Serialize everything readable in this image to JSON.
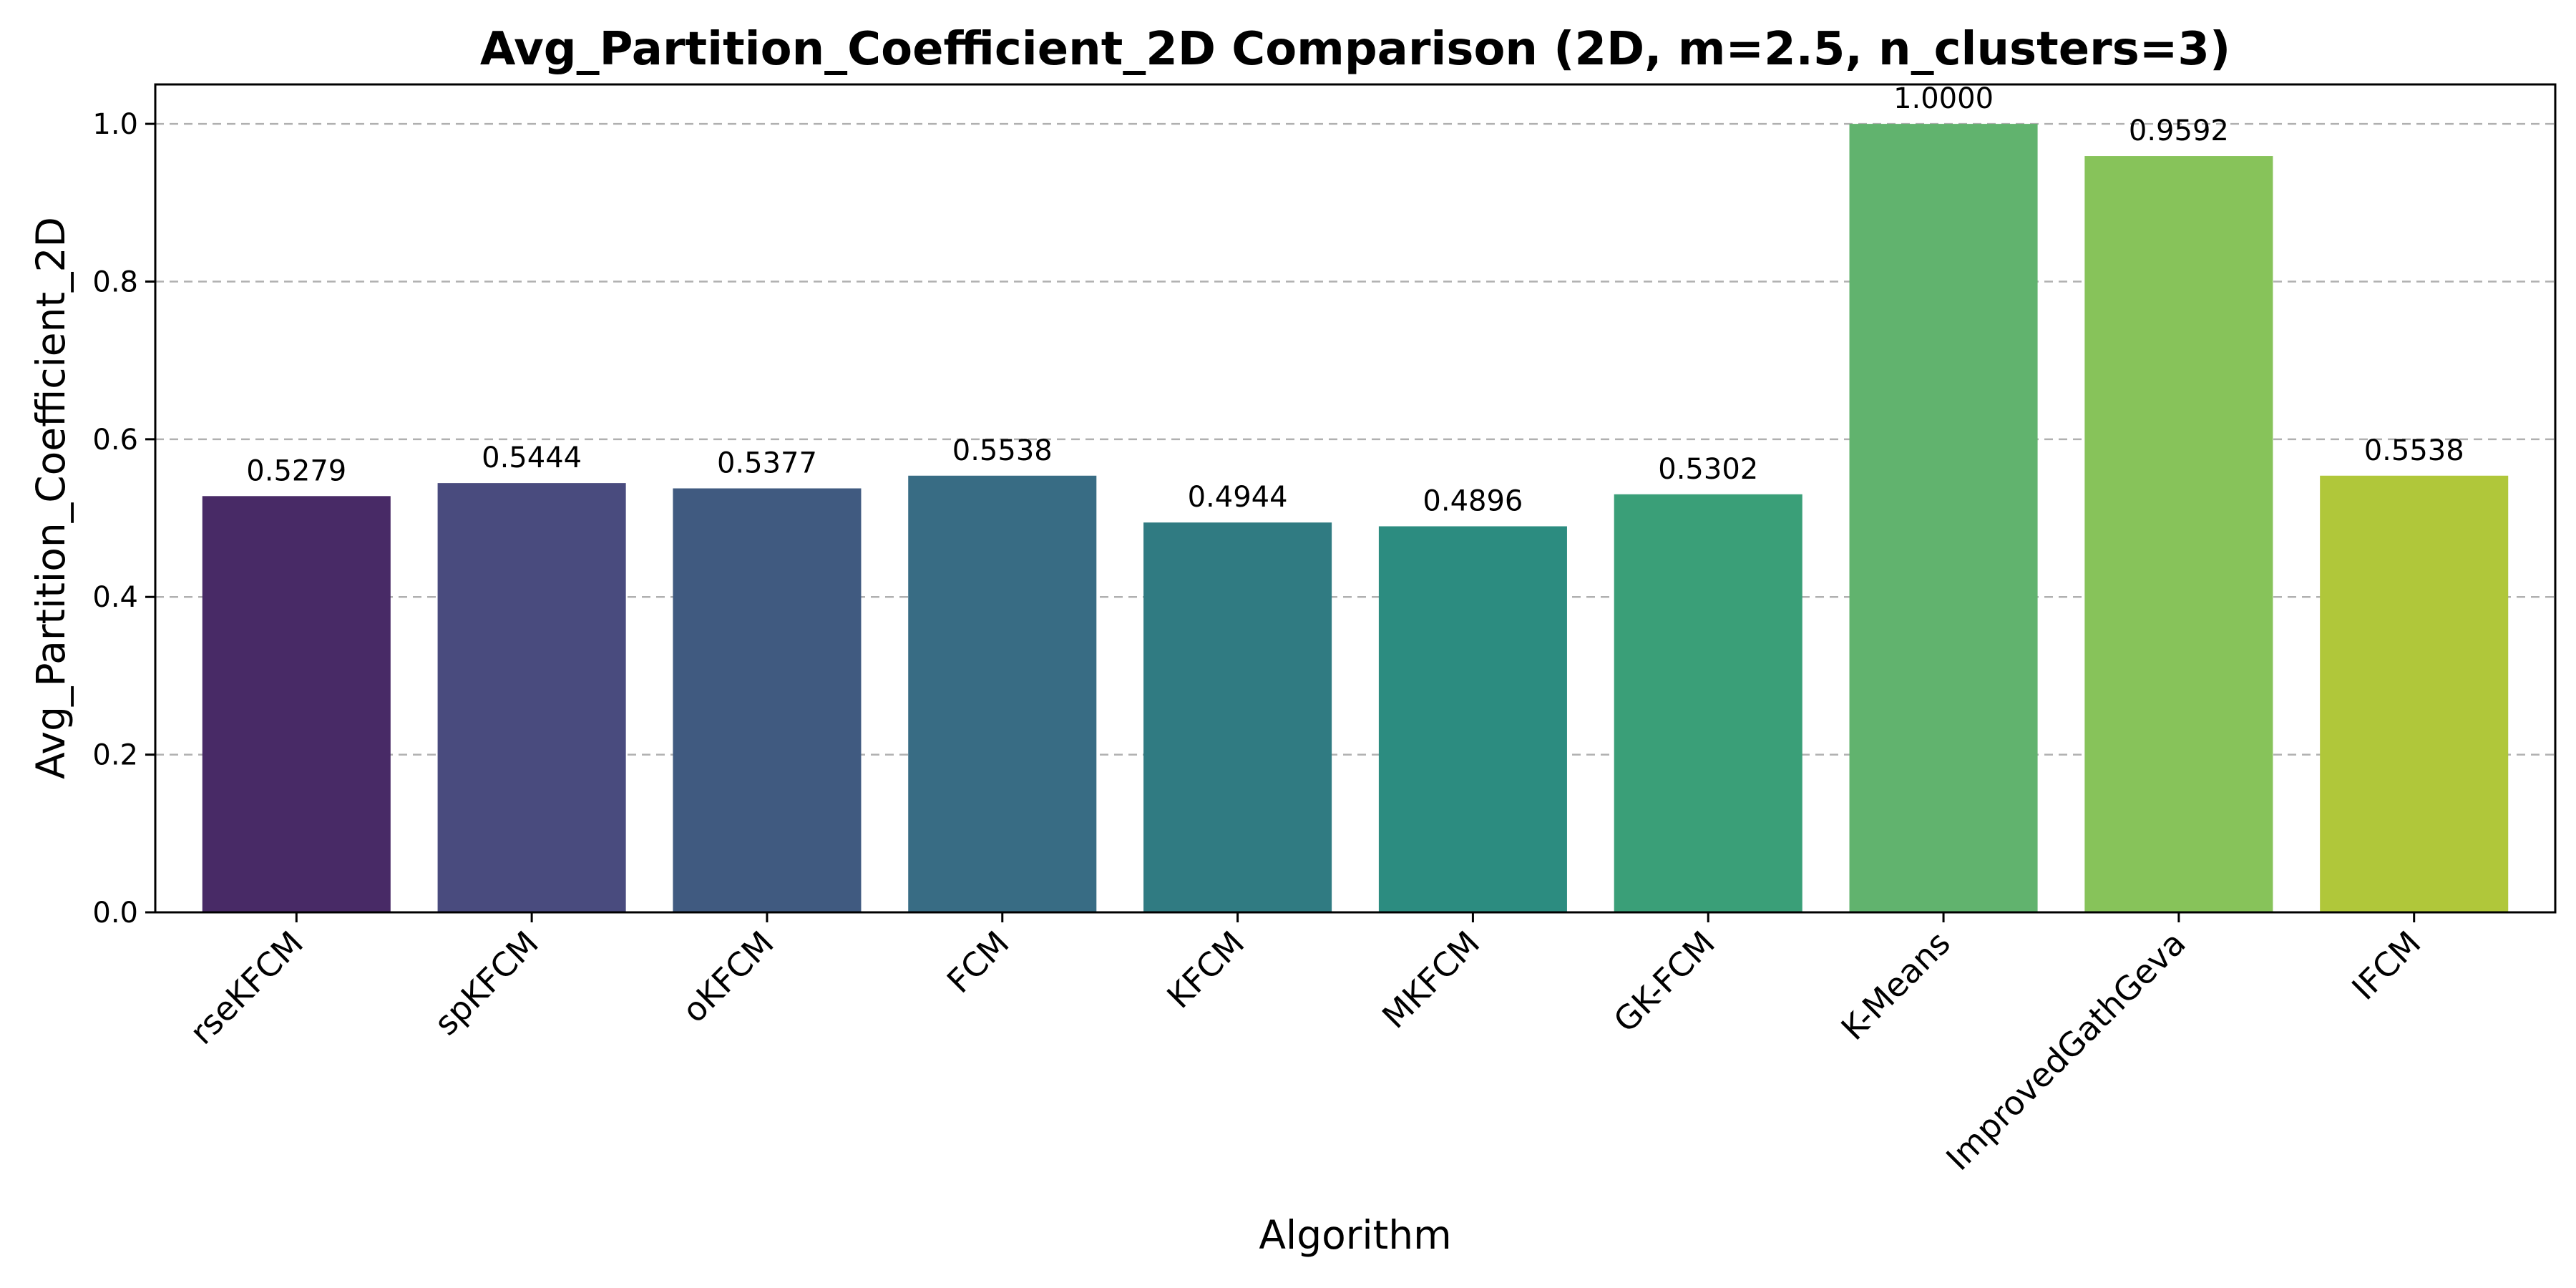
{
  "chart_data": {
    "type": "bar",
    "title": "Avg_Partition_Coefficient_2D Comparison (2D, m=2.5, n_clusters=3)",
    "xlabel": "Algorithm",
    "ylabel": "Avg_Partition_Coefficient_2D",
    "categories": [
      "rseKFCM",
      "spKFCM",
      "oKFCM",
      "FCM",
      "KFCM",
      "MKFCM",
      "GK-FCM",
      "K-Means",
      "ImprovedGathGeva",
      "IFCM"
    ],
    "values": [
      0.5279,
      0.5444,
      0.5377,
      0.5538,
      0.4944,
      0.4896,
      0.5302,
      1.0,
      0.9592,
      0.5538
    ],
    "value_labels": [
      "0.5279",
      "0.5444",
      "0.5377",
      "0.5538",
      "0.4944",
      "0.4896",
      "0.5302",
      "1.0000",
      "0.9592",
      "0.5538"
    ],
    "colors": [
      "#482a66",
      "#494b7e",
      "#405a80",
      "#386c84",
      "#307b82",
      "#2c8c80",
      "#3a9f78",
      "#61b36e",
      "#87c35a",
      "#b0c73a"
    ],
    "yticks": [
      0.0,
      0.2,
      0.4,
      0.6,
      0.8,
      1.0
    ],
    "ytick_labels": [
      "0.0",
      "0.2",
      "0.4",
      "0.6",
      "0.8",
      "1.0"
    ],
    "ylim": [
      0,
      1.05
    ],
    "grid": "y-dashed",
    "legend": "none"
  }
}
